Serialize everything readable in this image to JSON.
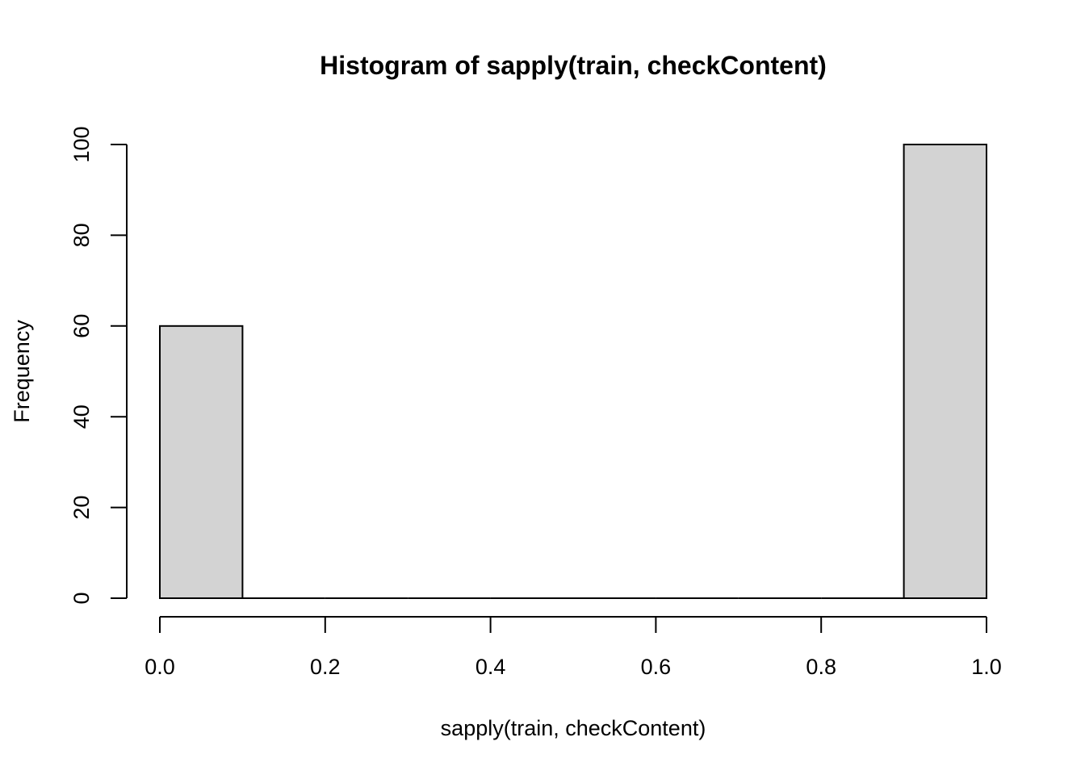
{
  "chart_data": {
    "type": "bar",
    "title": "Histogram of sapply(train, checkContent)",
    "xlabel": "sapply(train, checkContent)",
    "ylabel": "Frequency",
    "bins": [
      {
        "start": 0.0,
        "end": 0.1,
        "count": 60
      },
      {
        "start": 0.1,
        "end": 0.2,
        "count": 0
      },
      {
        "start": 0.2,
        "end": 0.3,
        "count": 0
      },
      {
        "start": 0.3,
        "end": 0.4,
        "count": 0
      },
      {
        "start": 0.4,
        "end": 0.5,
        "count": 0
      },
      {
        "start": 0.5,
        "end": 0.6,
        "count": 0
      },
      {
        "start": 0.6,
        "end": 0.7,
        "count": 0
      },
      {
        "start": 0.7,
        "end": 0.8,
        "count": 0
      },
      {
        "start": 0.8,
        "end": 0.9,
        "count": 0
      },
      {
        "start": 0.9,
        "end": 1.0,
        "count": 100
      }
    ],
    "xlim": [
      0.0,
      1.0
    ],
    "ylim": [
      0,
      100
    ],
    "x_ticks": [
      "0.0",
      "0.2",
      "0.4",
      "0.6",
      "0.8",
      "1.0"
    ],
    "y_ticks": [
      "0",
      "20",
      "40",
      "60",
      "80",
      "100"
    ],
    "bar_color": "#d3d3d3",
    "grid": false
  }
}
